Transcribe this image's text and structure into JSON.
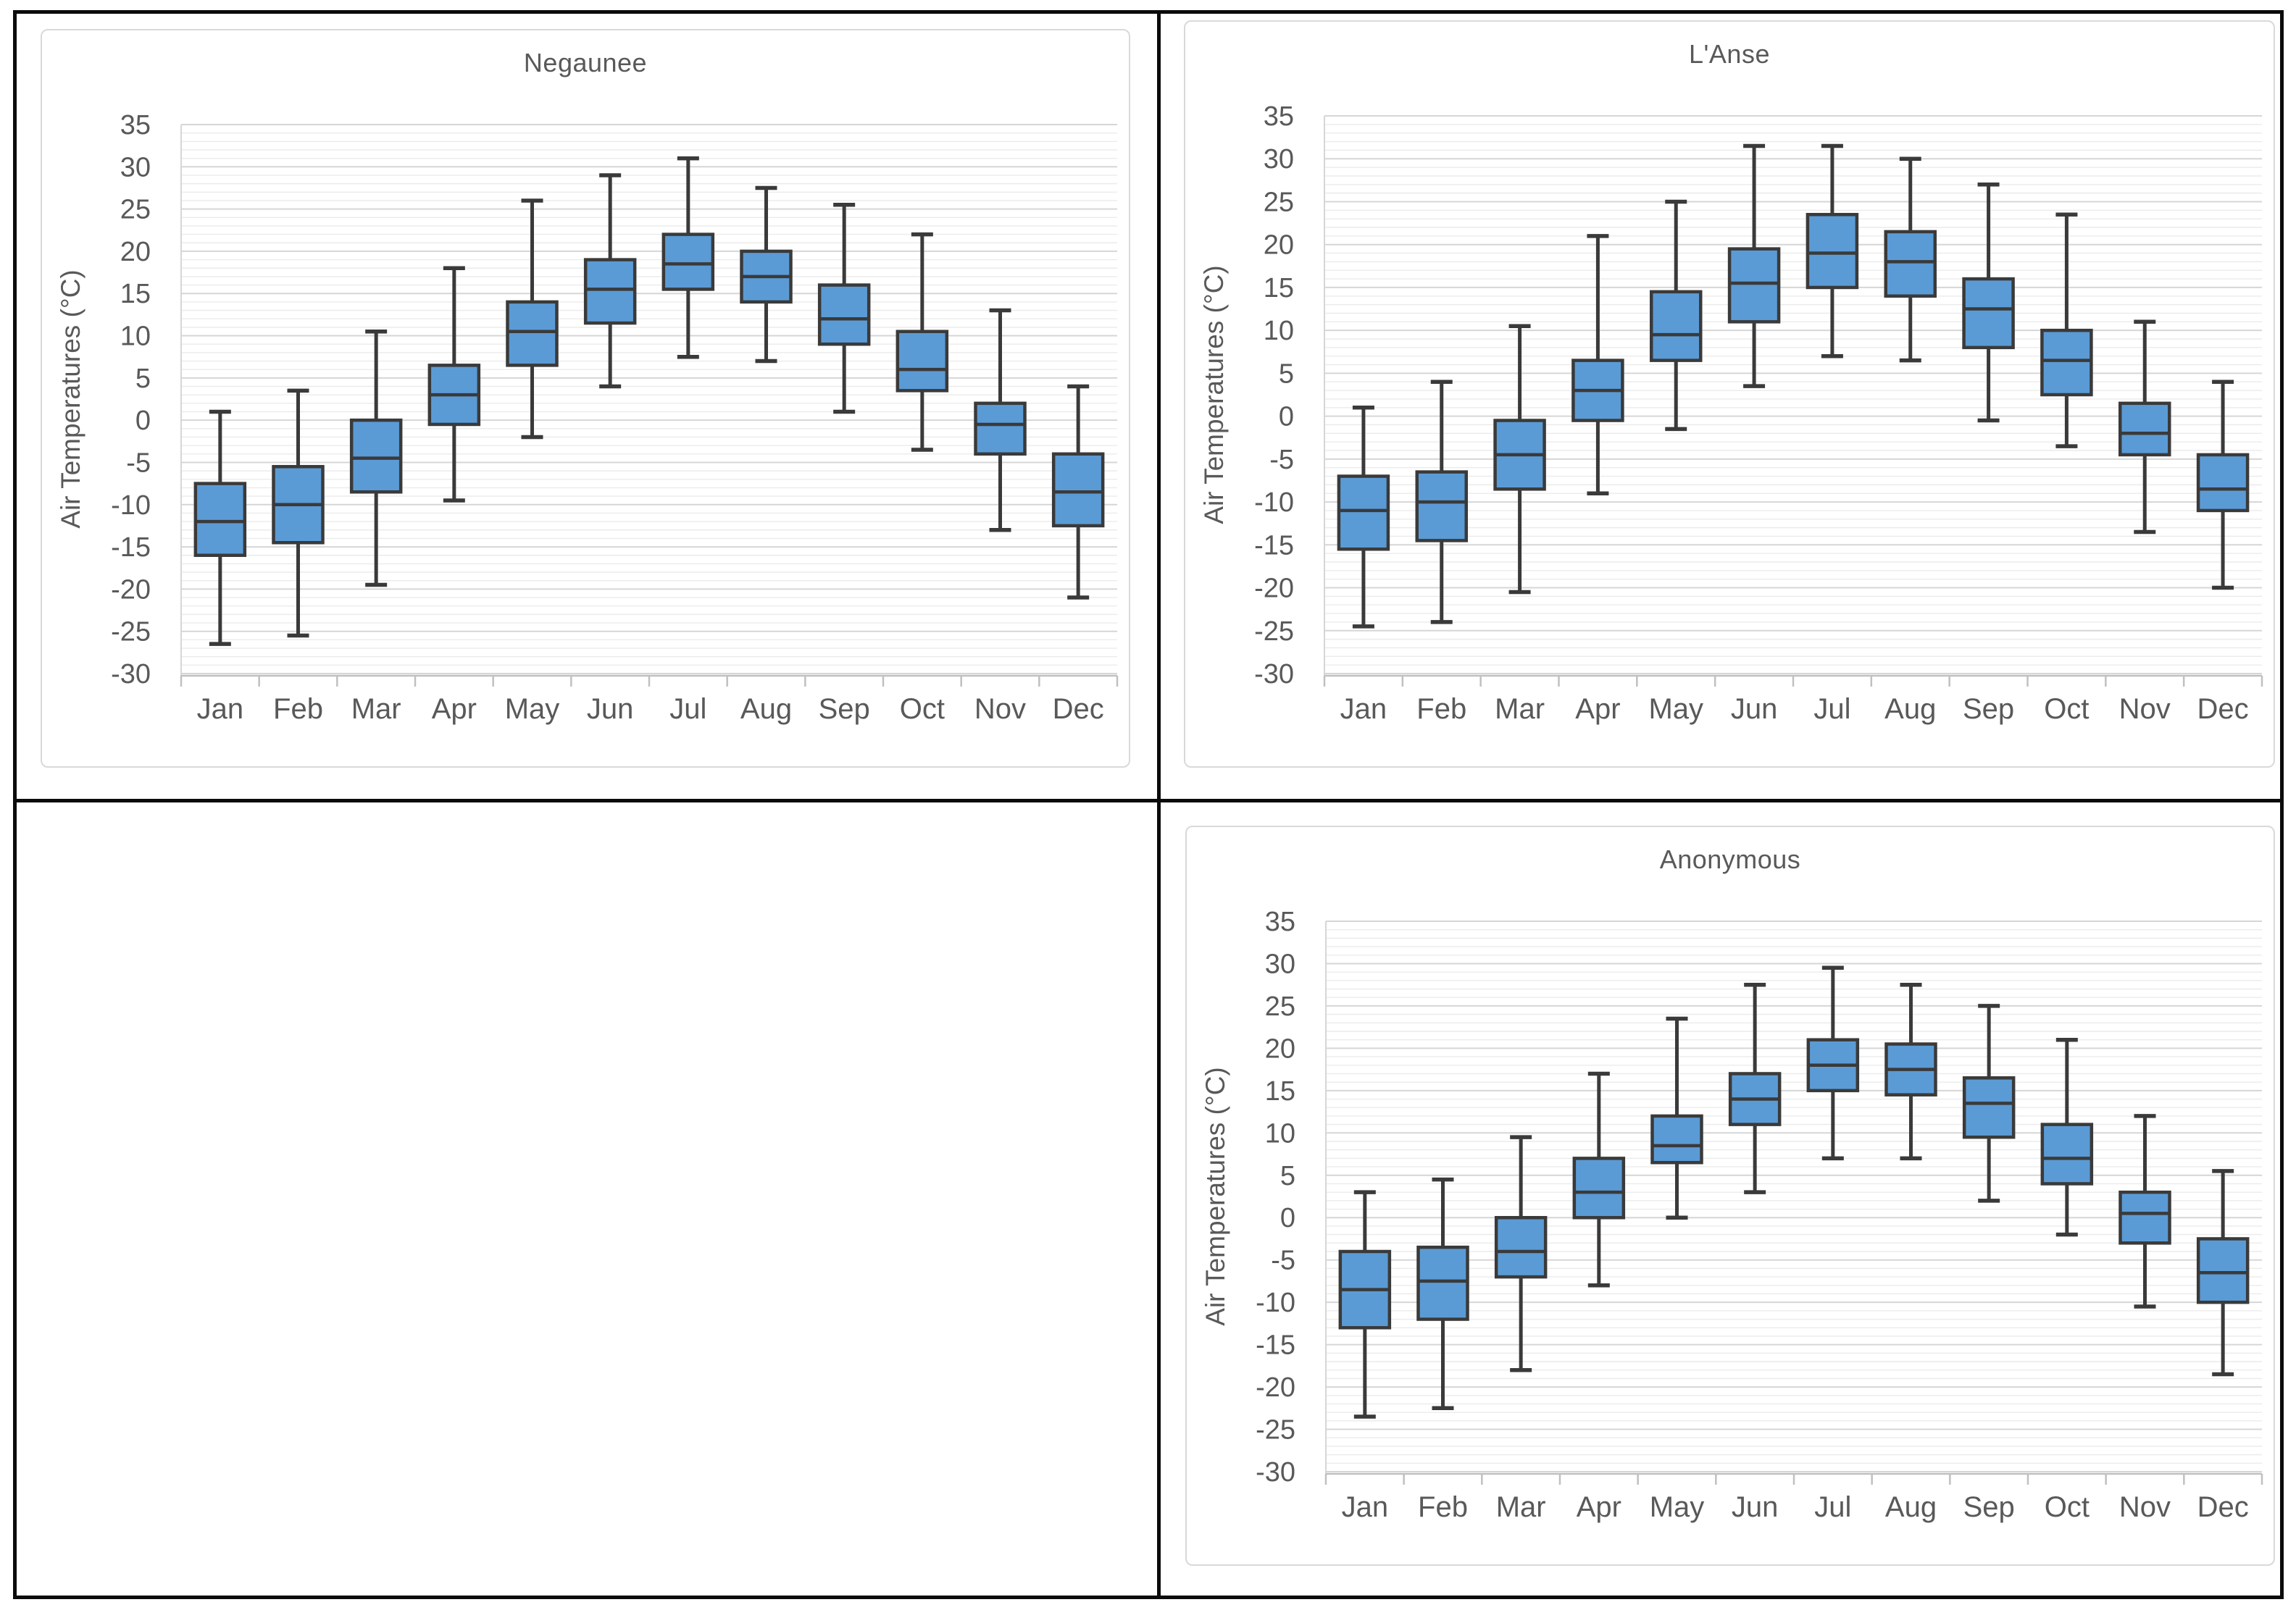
{
  "colors": {
    "box_fill": "#5B9BD5",
    "box_stroke": "#3A3A3A",
    "grid_major": "#D6D6D6",
    "grid_minor": "#EBEBEB",
    "axis_line": "#C0C0C0",
    "text": "#595959",
    "table_border": "#0B0B0B",
    "chart_border": "#D9D9D9"
  },
  "chart_data": [
    {
      "type": "boxplot",
      "title": "Negaunee",
      "ylabel": "Air Temperatures (°C)",
      "ylim": [
        -30,
        35
      ],
      "ymajor": 5,
      "yminor": 1,
      "grid": true,
      "legend": "none",
      "y_ticks": [
        35,
        30,
        25,
        20,
        15,
        10,
        5,
        0,
        -5,
        -10,
        -15,
        -20,
        -25,
        -30
      ],
      "categories": [
        "Jan",
        "Feb",
        "Mar",
        "Apr",
        "May",
        "Jun",
        "Jul",
        "Aug",
        "Sep",
        "Oct",
        "Nov",
        "Dec"
      ],
      "stats": [
        {
          "month": "Jan",
          "lo": -26.5,
          "q1": -16,
          "med": -12,
          "q3": -7.5,
          "hi": 1
        },
        {
          "month": "Feb",
          "lo": -25.5,
          "q1": -14.5,
          "med": -10,
          "q3": -5.5,
          "hi": 3.5
        },
        {
          "month": "Mar",
          "lo": -19.5,
          "q1": -8.5,
          "med": -4.5,
          "q3": 0,
          "hi": 10.5
        },
        {
          "month": "Apr",
          "lo": -9.5,
          "q1": -0.5,
          "med": 3,
          "q3": 6.5,
          "hi": 18
        },
        {
          "month": "May",
          "lo": -2,
          "q1": 6.5,
          "med": 10.5,
          "q3": 14,
          "hi": 26
        },
        {
          "month": "Jun",
          "lo": 4,
          "q1": 11.5,
          "med": 15.5,
          "q3": 19,
          "hi": 29
        },
        {
          "month": "Jul",
          "lo": 7.5,
          "q1": 15.5,
          "med": 18.5,
          "q3": 22,
          "hi": 31
        },
        {
          "month": "Aug",
          "lo": 7,
          "q1": 14,
          "med": 17,
          "q3": 20,
          "hi": 27.5
        },
        {
          "month": "Sep",
          "lo": 1,
          "q1": 9,
          "med": 12,
          "q3": 16,
          "hi": 25.5
        },
        {
          "month": "Oct",
          "lo": -3.5,
          "q1": 3.5,
          "med": 6,
          "q3": 10.5,
          "hi": 22
        },
        {
          "month": "Nov",
          "lo": -13,
          "q1": -4,
          "med": -0.5,
          "q3": 2,
          "hi": 13
        },
        {
          "month": "Dec",
          "lo": -21,
          "q1": -12.5,
          "med": -8.5,
          "q3": -4,
          "hi": 4
        }
      ]
    },
    {
      "type": "boxplot",
      "title": "L'Anse",
      "ylabel": "Air Temperatures (°C)",
      "ylim": [
        -30,
        35
      ],
      "ymajor": 5,
      "yminor": 1,
      "grid": true,
      "legend": "none",
      "y_ticks": [
        35,
        30,
        25,
        20,
        15,
        10,
        5,
        0,
        -5,
        -10,
        -15,
        -20,
        -25,
        -30
      ],
      "categories": [
        "Jan",
        "Feb",
        "Mar",
        "Apr",
        "May",
        "Jun",
        "Jul",
        "Aug",
        "Sep",
        "Oct",
        "Nov",
        "Dec"
      ],
      "stats": [
        {
          "month": "Jan",
          "lo": -24.5,
          "q1": -15.5,
          "med": -11,
          "q3": -7,
          "hi": 1
        },
        {
          "month": "Feb",
          "lo": -24,
          "q1": -14.5,
          "med": -10,
          "q3": -6.5,
          "hi": 4
        },
        {
          "month": "Mar",
          "lo": -20.5,
          "q1": -8.5,
          "med": -4.5,
          "q3": -0.5,
          "hi": 10.5
        },
        {
          "month": "Apr",
          "lo": -9,
          "q1": -0.5,
          "med": 3,
          "q3": 6.5,
          "hi": 21
        },
        {
          "month": "May",
          "lo": -1.5,
          "q1": 6.5,
          "med": 9.5,
          "q3": 14.5,
          "hi": 25
        },
        {
          "month": "Jun",
          "lo": 3.5,
          "q1": 11,
          "med": 15.5,
          "q3": 19.5,
          "hi": 31.5
        },
        {
          "month": "Jul",
          "lo": 7,
          "q1": 15,
          "med": 19,
          "q3": 23.5,
          "hi": 31.5
        },
        {
          "month": "Aug",
          "lo": 6.5,
          "q1": 14,
          "med": 18,
          "q3": 21.5,
          "hi": 30
        },
        {
          "month": "Sep",
          "lo": -0.5,
          "q1": 8,
          "med": 12.5,
          "q3": 16,
          "hi": 27
        },
        {
          "month": "Oct",
          "lo": -3.5,
          "q1": 2.5,
          "med": 6.5,
          "q3": 10,
          "hi": 23.5
        },
        {
          "month": "Nov",
          "lo": -13.5,
          "q1": -4.5,
          "med": -2,
          "q3": 1.5,
          "hi": 11
        },
        {
          "month": "Dec",
          "lo": -20,
          "q1": -11,
          "med": -8.5,
          "q3": -4.5,
          "hi": 4
        }
      ]
    },
    {
      "type": "boxplot",
      "title": "Anonymous",
      "ylabel": "Air Temperatures (°C)",
      "ylim": [
        -30,
        35
      ],
      "ymajor": 5,
      "yminor": 1,
      "grid": true,
      "legend": "none",
      "y_ticks": [
        35,
        30,
        25,
        20,
        15,
        10,
        5,
        0,
        -5,
        -10,
        -15,
        -20,
        -25,
        -30
      ],
      "categories": [
        "Jan",
        "Feb",
        "Mar",
        "Apr",
        "May",
        "Jun",
        "Jul",
        "Aug",
        "Sep",
        "Oct",
        "Nov",
        "Dec"
      ],
      "stats": [
        {
          "month": "Jan",
          "lo": -23.5,
          "q1": -13,
          "med": -8.5,
          "q3": -4,
          "hi": 3
        },
        {
          "month": "Feb",
          "lo": -22.5,
          "q1": -12,
          "med": -7.5,
          "q3": -3.5,
          "hi": 4.5
        },
        {
          "month": "Mar",
          "lo": -18,
          "q1": -7,
          "med": -4,
          "q3": 0,
          "hi": 9.5
        },
        {
          "month": "Apr",
          "lo": -8,
          "q1": 0,
          "med": 3,
          "q3": 7,
          "hi": 17
        },
        {
          "month": "May",
          "lo": 0,
          "q1": 6.5,
          "med": 8.5,
          "q3": 12,
          "hi": 23.5
        },
        {
          "month": "Jun",
          "lo": 3,
          "q1": 11,
          "med": 14,
          "q3": 17,
          "hi": 27.5
        },
        {
          "month": "Jul",
          "lo": 7,
          "q1": 15,
          "med": 18,
          "q3": 21,
          "hi": 29.5
        },
        {
          "month": "Aug",
          "lo": 7,
          "q1": 14.5,
          "med": 17.5,
          "q3": 20.5,
          "hi": 27.5
        },
        {
          "month": "Sep",
          "lo": 2,
          "q1": 9.5,
          "med": 13.5,
          "q3": 16.5,
          "hi": 25
        },
        {
          "month": "Oct",
          "lo": -2,
          "q1": 4,
          "med": 7,
          "q3": 11,
          "hi": 21
        },
        {
          "month": "Nov",
          "lo": -10.5,
          "q1": -3,
          "med": 0.5,
          "q3": 3,
          "hi": 12
        },
        {
          "month": "Dec",
          "lo": -18.5,
          "q1": -10,
          "med": -6.5,
          "q3": -2.5,
          "hi": 5.5
        }
      ]
    }
  ]
}
